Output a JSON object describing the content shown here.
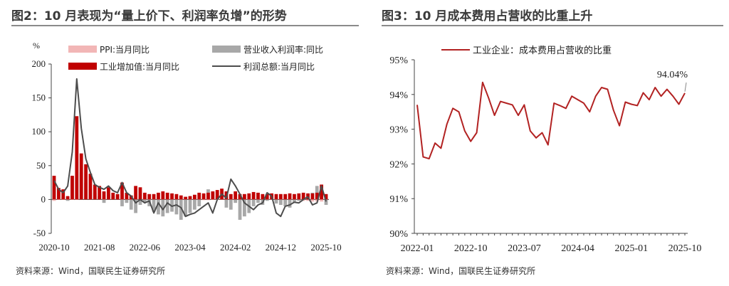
{
  "left": {
    "title": "图2：10 月表现为“量上价下、利润率负增”的形势",
    "source": "资料来源：Wind，国联民生证券研究所",
    "chart_data": {
      "type": "bar",
      "unit_label": "%",
      "ylim": [
        -50,
        200
      ],
      "yticks": [
        "-50",
        "0",
        "50",
        "100",
        "150",
        "200"
      ],
      "xtick_labels": [
        "2020-10",
        "2021-08",
        "2022-06",
        "2023-04",
        "2024-02",
        "2024-12",
        "2025-10"
      ],
      "xtick_index": [
        0,
        10,
        20,
        30,
        40,
        50,
        60
      ],
      "legend": {
        "ppi": "PPI:当月同比",
        "margin": "营业收入利润率:同比",
        "output": "工业增加值:当月同比",
        "profit": "利润总额:当月同比"
      },
      "colors": {
        "ppi": "#f2b6b6",
        "margin": "#a8a8a8",
        "output": "#c00000",
        "profit": "#4d4d4d"
      },
      "series": {
        "ppi": [
          -2,
          0,
          0,
          0,
          0,
          0,
          1,
          2,
          3,
          4,
          5,
          6,
          6,
          6,
          6,
          7,
          5,
          4,
          3,
          3,
          2,
          0,
          -1,
          -1,
          -1,
          -1,
          0,
          -1,
          -1,
          -1,
          -1,
          -2,
          -1,
          -1,
          -1,
          0,
          0,
          0,
          -1,
          -1,
          -2,
          0,
          0,
          0,
          0,
          0,
          -1,
          0,
          0,
          -2,
          -2,
          -2,
          -2,
          -2,
          -2,
          -2,
          -2,
          -3,
          -3,
          -3,
          -2
        ],
        "margin": [
          20,
          10,
          3,
          -2,
          35,
          85,
          40,
          25,
          15,
          10,
          5,
          -5,
          8,
          5,
          2,
          -10,
          -5,
          -15,
          -20,
          -8,
          -5,
          -10,
          -18,
          -22,
          -25,
          -20,
          -18,
          -22,
          -30,
          -25,
          -20,
          -15,
          -10,
          5,
          15,
          10,
          5,
          0,
          -12,
          -15,
          -5,
          -30,
          -25,
          -20,
          -10,
          -5,
          -8,
          -2,
          0,
          -6,
          -8,
          -10,
          -12,
          -5,
          -2,
          5,
          0,
          10,
          20,
          15,
          -8
        ],
        "output": [
          35,
          17,
          15,
          5,
          35,
          123,
          68,
          52,
          38,
          22,
          20,
          12,
          18,
          10,
          8,
          25,
          10,
          6,
          20,
          18,
          10,
          8,
          8,
          10,
          12,
          10,
          9,
          8,
          6,
          4,
          5,
          7,
          10,
          9,
          10,
          12,
          14,
          16,
          12,
          8,
          12,
          8,
          8,
          9,
          11,
          10,
          8,
          8,
          9,
          8,
          8,
          8,
          9,
          8,
          9,
          10,
          9,
          9,
          10,
          22,
          8
        ],
        "profit": [
          28,
          15,
          10,
          20,
          70,
          178,
          105,
          60,
          40,
          22,
          18,
          15,
          20,
          13,
          10,
          25,
          10,
          5,
          -5,
          0,
          -5,
          -2,
          -20,
          -5,
          -15,
          -5,
          -10,
          -8,
          -12,
          -25,
          -22,
          -20,
          -15,
          -10,
          -5,
          -20,
          0,
          8,
          2,
          30,
          20,
          8,
          -5,
          -10,
          -15,
          -8,
          -5,
          10,
          5,
          -20,
          -25,
          -10,
          -8,
          -4,
          -5,
          0,
          4,
          -8,
          -5,
          20,
          -3
        ]
      }
    }
  },
  "right": {
    "title": "图3：10 月成本费用占营收的比重上升",
    "source": "资料来源：Wind，国联民生证券研究所",
    "chart_data": {
      "type": "line",
      "series_name": "工业企业：成本费用占营收的比重",
      "color": "#b22222",
      "ylim": [
        90,
        95
      ],
      "yticks": [
        "90%",
        "91%",
        "92%",
        "93%",
        "94%",
        "95%"
      ],
      "xtick_labels": [
        "2022-01",
        "2022-10",
        "2023-07",
        "2024-04",
        "2025-01",
        "2025-10"
      ],
      "xtick_index": [
        0,
        9,
        18,
        27,
        36,
        45
      ],
      "last_label": "94.04%",
      "values": [
        93.7,
        92.2,
        92.15,
        92.6,
        92.45,
        93.15,
        93.6,
        93.5,
        92.95,
        92.65,
        92.9,
        94.35,
        93.9,
        93.4,
        93.8,
        93.75,
        93.7,
        93.4,
        93.7,
        92.95,
        92.75,
        92.9,
        92.55,
        93.75,
        93.68,
        93.6,
        93.95,
        93.85,
        93.75,
        93.5,
        93.95,
        94.2,
        94.15,
        93.55,
        93.1,
        93.78,
        93.72,
        93.68,
        94.05,
        93.85,
        94.2,
        93.95,
        94.15,
        93.95,
        93.72,
        94.04
      ]
    }
  }
}
